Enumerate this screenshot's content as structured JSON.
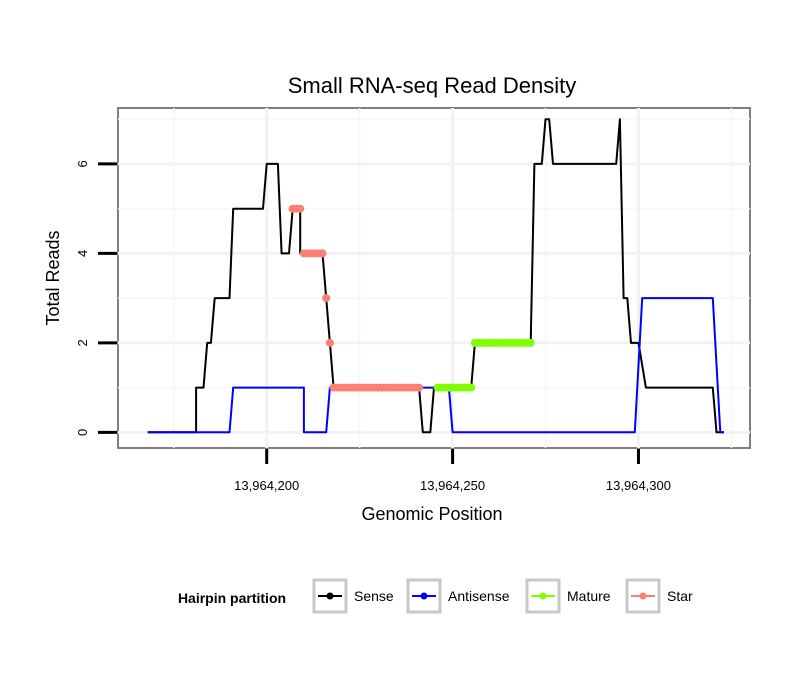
{
  "chart_data": {
    "type": "line",
    "title": "Small RNA-seq Read Density",
    "xlabel": "Genomic Position",
    "ylabel": "Total Reads",
    "xlim": [
      13964160,
      13964330
    ],
    "ylim": [
      -0.35,
      7.25
    ],
    "x_ticks": [
      13964200,
      13964250,
      13964300
    ],
    "x_tick_labels": [
      "13,964,200",
      "13,964,250",
      "13,964,300"
    ],
    "y_ticks": [
      0,
      2,
      4,
      6
    ],
    "y_tick_labels": [
      "0",
      "2",
      "4",
      "6"
    ],
    "grid": true,
    "legend": {
      "title": "Hairpin partition",
      "placement": "bottom",
      "entries": [
        {
          "name": "Sense",
          "color": "#000000"
        },
        {
          "name": "Antisense",
          "color": "#0000ff"
        },
        {
          "name": "Mature",
          "color": "#7fff00"
        },
        {
          "name": "Star",
          "color": "#fa8072"
        }
      ]
    },
    "series": [
      {
        "name": "Sense",
        "color": "#000000",
        "style": "line",
        "points": [
          [
            13964168,
            0
          ],
          [
            13964181,
            0
          ],
          [
            13964181,
            1
          ],
          [
            13964183,
            1
          ],
          [
            13964184,
            2
          ],
          [
            13964185,
            2
          ],
          [
            13964186,
            3
          ],
          [
            13964190,
            3
          ],
          [
            13964191,
            5
          ],
          [
            13964199,
            5
          ],
          [
            13964200,
            6
          ],
          [
            13964203,
            6
          ],
          [
            13964204,
            4
          ],
          [
            13964206,
            4
          ],
          [
            13964207,
            5
          ],
          [
            13964209,
            5
          ],
          [
            13964209,
            4
          ],
          [
            13964215,
            4
          ],
          [
            13964216,
            3
          ],
          [
            13964217,
            2
          ],
          [
            13964218,
            1
          ],
          [
            13964241,
            1
          ],
          [
            13964242,
            0
          ],
          [
            13964244,
            0
          ],
          [
            13964245,
            1
          ],
          [
            13964255,
            1
          ],
          [
            13964256,
            2
          ],
          [
            13964271,
            2
          ],
          [
            13964272,
            6
          ],
          [
            13964274,
            6
          ],
          [
            13964275,
            7
          ],
          [
            13964276,
            7
          ],
          [
            13964277,
            6
          ],
          [
            13964294,
            6
          ],
          [
            13964295,
            7
          ],
          [
            13964296,
            3
          ],
          [
            13964297,
            3
          ],
          [
            13964298,
            2
          ],
          [
            13964300,
            2
          ],
          [
            13964302,
            1
          ],
          [
            13964320,
            1
          ],
          [
            13964321,
            0
          ],
          [
            13964323,
            0
          ]
        ]
      },
      {
        "name": "Antisense",
        "color": "#0000ff",
        "style": "line",
        "points": [
          [
            13964168,
            0
          ],
          [
            13964190,
            0
          ],
          [
            13964191,
            1
          ],
          [
            13964210,
            1
          ],
          [
            13964210,
            0
          ],
          [
            13964216,
            0
          ],
          [
            13964217,
            1
          ],
          [
            13964249,
            1
          ],
          [
            13964250,
            0
          ],
          [
            13964299,
            0
          ],
          [
            13964301,
            3
          ],
          [
            13964320,
            3
          ],
          [
            13964322,
            0
          ],
          [
            13964323,
            0
          ]
        ]
      },
      {
        "name": "Mature",
        "color": "#7fff00",
        "style": "dots",
        "points": [
          [
            13964246,
            1
          ],
          [
            13964247,
            1
          ],
          [
            13964248,
            1
          ],
          [
            13964249,
            1
          ],
          [
            13964250,
            1
          ],
          [
            13964251,
            1
          ],
          [
            13964252,
            1
          ],
          [
            13964253,
            1
          ],
          [
            13964254,
            1
          ],
          [
            13964255,
            1
          ],
          [
            13964256,
            2
          ],
          [
            13964257,
            2
          ],
          [
            13964258,
            2
          ],
          [
            13964259,
            2
          ],
          [
            13964260,
            2
          ],
          [
            13964261,
            2
          ],
          [
            13964262,
            2
          ],
          [
            13964263,
            2
          ],
          [
            13964264,
            2
          ],
          [
            13964265,
            2
          ],
          [
            13964266,
            2
          ],
          [
            13964267,
            2
          ],
          [
            13964268,
            2
          ],
          [
            13964269,
            2
          ],
          [
            13964270,
            2
          ],
          [
            13964271,
            2
          ]
        ]
      },
      {
        "name": "Star",
        "color": "#fa8072",
        "style": "dots",
        "points": [
          [
            13964207,
            5
          ],
          [
            13964208,
            5
          ],
          [
            13964209,
            5
          ],
          [
            13964210,
            4
          ],
          [
            13964211,
            4
          ],
          [
            13964212,
            4
          ],
          [
            13964213,
            4
          ],
          [
            13964214,
            4
          ],
          [
            13964215,
            4
          ],
          [
            13964216,
            3
          ],
          [
            13964217,
            2
          ],
          [
            13964218,
            1
          ],
          [
            13964219,
            1
          ],
          [
            13964220,
            1
          ],
          [
            13964221,
            1
          ],
          [
            13964222,
            1
          ],
          [
            13964223,
            1
          ],
          [
            13964224,
            1
          ],
          [
            13964225,
            1
          ],
          [
            13964226,
            1
          ],
          [
            13964227,
            1
          ],
          [
            13964228,
            1
          ],
          [
            13964229,
            1
          ],
          [
            13964230,
            1
          ],
          [
            13964231,
            1
          ],
          [
            13964232,
            1
          ],
          [
            13964233,
            1
          ],
          [
            13964234,
            1
          ],
          [
            13964235,
            1
          ],
          [
            13964236,
            1
          ],
          [
            13964237,
            1
          ],
          [
            13964238,
            1
          ],
          [
            13964239,
            1
          ],
          [
            13964240,
            1
          ],
          [
            13964241,
            1
          ]
        ]
      }
    ]
  }
}
